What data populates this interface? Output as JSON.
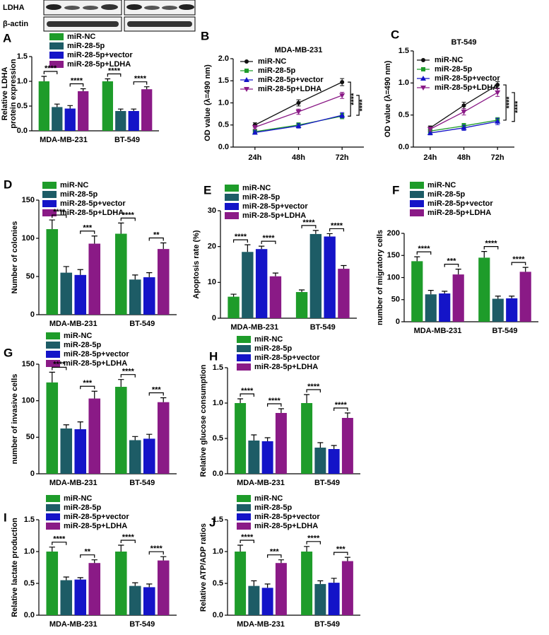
{
  "blot": {
    "labels": [
      "LDHA",
      "β-actin"
    ]
  },
  "chart_data": [
    {
      "panel": "A",
      "type": "bar",
      "y_label": [
        "Relative LDHA",
        "protein expression"
      ],
      "categories": [
        "MDA-MB-231",
        "BT-549"
      ],
      "ylim": [
        0,
        1.5
      ],
      "yticks": [
        {
          "value": 0,
          "label": "0.0"
        },
        0.5,
        {
          "value": 1,
          "label": "1.0"
        },
        1.5
      ],
      "series": [
        {
          "name": "miR-NC",
          "color": "#1e9c2a",
          "values": [
            1.0,
            1.0
          ],
          "errors": [
            0.1,
            0.05
          ]
        },
        {
          "name": "miR-28-5p",
          "color": "#1d5c66",
          "values": [
            0.48,
            0.4
          ],
          "errors": [
            0.06,
            0.04
          ]
        },
        {
          "name": "miR-28-5p+vector",
          "color": "#1414c8",
          "values": [
            0.45,
            0.4
          ],
          "errors": [
            0.06,
            0.04
          ]
        },
        {
          "name": "miR-28-5p+LDHA",
          "color": "#8a1a86",
          "values": [
            0.8,
            0.84
          ],
          "errors": [
            0.05,
            0.05
          ]
        }
      ],
      "annotations": [
        "****",
        "****",
        "****",
        "****"
      ]
    },
    {
      "panel": "B",
      "type": "line",
      "title": "MDA-MB-231",
      "y_label": "OD value (λ=490 nm)",
      "categories": [
        "24h",
        "48h",
        "72h"
      ],
      "ylim": [
        0,
        2
      ],
      "yticks": [
        {
          "value": 0,
          "label": "0.0"
        },
        0.5,
        {
          "value": 1,
          "label": "1.0"
        },
        1.5,
        {
          "value": 2,
          "label": "2.0"
        }
      ],
      "series": [
        {
          "name": "miR-NC",
          "color": "#111111",
          "marker": "circle",
          "values": [
            0.5,
            1.0,
            1.47
          ],
          "errors": [
            0.05,
            0.07,
            0.08
          ]
        },
        {
          "name": "miR-28-5p",
          "color": "#1e9c2a",
          "marker": "square",
          "values": [
            0.35,
            0.5,
            0.7
          ],
          "errors": [
            0.04,
            0.05,
            0.06
          ]
        },
        {
          "name": "miR-28-5p+vector",
          "color": "#1414c8",
          "marker": "triangle",
          "values": [
            0.33,
            0.48,
            0.72
          ],
          "errors": [
            0.04,
            0.05,
            0.06
          ]
        },
        {
          "name": "miR-28-5p+LDHA",
          "color": "#8a1a86",
          "marker": "triangle-down",
          "values": [
            0.45,
            0.8,
            1.17
          ],
          "errors": [
            0.04,
            0.06,
            0.07
          ]
        }
      ],
      "annotations": [
        "****",
        "****"
      ]
    },
    {
      "panel": "C",
      "type": "line",
      "title": "BT-549",
      "y_label": "OD value (λ=490 nm)",
      "categories": [
        "24h",
        "48h",
        "72h"
      ],
      "ylim": [
        0,
        1.5
      ],
      "yticks": [
        {
          "value": 0,
          "label": "0.0"
        },
        0.5,
        {
          "value": 1,
          "label": "1.0"
        },
        1.5
      ],
      "series": [
        {
          "name": "miR-NC",
          "color": "#111111",
          "marker": "circle",
          "values": [
            0.3,
            0.65,
            0.97
          ],
          "errors": [
            0.03,
            0.05,
            0.05
          ]
        },
        {
          "name": "miR-28-5p",
          "color": "#1e9c2a",
          "marker": "square",
          "values": [
            0.25,
            0.33,
            0.42
          ],
          "errors": [
            0.03,
            0.04,
            0.04
          ]
        },
        {
          "name": "miR-28-5p+vector",
          "color": "#1414c8",
          "marker": "triangle",
          "values": [
            0.22,
            0.3,
            0.4
          ],
          "errors": [
            0.03,
            0.04,
            0.05
          ]
        },
        {
          "name": "miR-28-5p+LDHA",
          "color": "#8a1a86",
          "marker": "triangle-down",
          "values": [
            0.28,
            0.55,
            0.85
          ],
          "errors": [
            0.03,
            0.05,
            0.06
          ]
        }
      ],
      "annotations": [
        "****",
        "****"
      ]
    },
    {
      "panel": "D",
      "type": "bar",
      "y_label": "Number of colonies",
      "categories": [
        "MDA-MB-231",
        "BT-549"
      ],
      "ylim": [
        0,
        150
      ],
      "yticks": [
        0,
        50,
        100,
        150
      ],
      "series": [
        {
          "name": "miR-NC",
          "color": "#1e9c2a",
          "values": [
            112,
            106
          ],
          "errors": [
            12,
            14
          ]
        },
        {
          "name": "miR-28-5p",
          "color": "#1d5c66",
          "values": [
            55,
            46
          ],
          "errors": [
            8,
            6
          ]
        },
        {
          "name": "miR-28-5p+vector",
          "color": "#1414c8",
          "values": [
            52,
            49
          ],
          "errors": [
            7,
            6
          ]
        },
        {
          "name": "miR-28-5p+LDHA",
          "color": "#8a1a86",
          "values": [
            93,
            86
          ],
          "errors": [
            10,
            8
          ]
        }
      ],
      "annotations": [
        "****",
        "***",
        "****",
        "**"
      ]
    },
    {
      "panel": "E",
      "type": "bar",
      "y_label": "Apoptosis rate (%)",
      "categories": [
        "MDA-MB-231",
        "BT-549"
      ],
      "ylim": [
        0,
        30
      ],
      "yticks": [
        0,
        10,
        20,
        30
      ],
      "series": [
        {
          "name": "miR-NC",
          "color": "#1e9c2a",
          "values": [
            6,
            7.3
          ],
          "errors": [
            0.7,
            0.6
          ]
        },
        {
          "name": "miR-28-5p",
          "color": "#1d5c66",
          "values": [
            18.5,
            23.5
          ],
          "errors": [
            2,
            1
          ]
        },
        {
          "name": "miR-28-5p+vector",
          "color": "#1414c8",
          "values": [
            19.3,
            22.8
          ],
          "errors": [
            0.8,
            0.8
          ]
        },
        {
          "name": "miR-28-5p+LDHA",
          "color": "#8a1a86",
          "values": [
            11.7,
            13.8
          ],
          "errors": [
            0.9,
            0.9
          ]
        }
      ],
      "annotations": [
        "****",
        "****",
        "****",
        "****"
      ]
    },
    {
      "panel": "F",
      "type": "bar",
      "y_label": "number of migratory cells",
      "categories": [
        "MDA-MB-231",
        "BT-549"
      ],
      "ylim": [
        0,
        200
      ],
      "yticks": [
        0,
        50,
        100,
        150,
        200
      ],
      "series": [
        {
          "name": "miR-NC",
          "color": "#1e9c2a",
          "values": [
            137,
            145
          ],
          "errors": [
            10,
            14
          ]
        },
        {
          "name": "miR-28-5p",
          "color": "#1d5c66",
          "values": [
            62,
            52
          ],
          "errors": [
            9,
            6
          ]
        },
        {
          "name": "miR-28-5p+vector",
          "color": "#1414c8",
          "values": [
            64,
            53
          ],
          "errors": [
            5,
            5
          ]
        },
        {
          "name": "miR-28-5p+LDHA",
          "color": "#8a1a86",
          "values": [
            107,
            113
          ],
          "errors": [
            12,
            10
          ]
        }
      ],
      "annotations": [
        "****",
        "***",
        "****",
        "****"
      ]
    },
    {
      "panel": "G",
      "type": "bar",
      "y_label": "number of invasive cells",
      "categories": [
        "MDA-MB-231",
        "BT-549"
      ],
      "ylim": [
        0,
        150
      ],
      "yticks": [
        0,
        50,
        100,
        150
      ],
      "series": [
        {
          "name": "miR-NC",
          "color": "#1e9c2a",
          "values": [
            125,
            119
          ],
          "errors": [
            14,
            10
          ]
        },
        {
          "name": "miR-28-5p",
          "color": "#1d5c66",
          "values": [
            62,
            46
          ],
          "errors": [
            5,
            5
          ]
        },
        {
          "name": "miR-28-5p+vector",
          "color": "#1414c8",
          "values": [
            61,
            48
          ],
          "errors": [
            10,
            6
          ]
        },
        {
          "name": "miR-28-5p+LDHA",
          "color": "#8a1a86",
          "values": [
            103,
            98
          ],
          "errors": [
            10,
            6
          ]
        }
      ],
      "annotations": [
        "****",
        "***",
        "****",
        "***"
      ]
    },
    {
      "panel": "H",
      "type": "bar",
      "y_label": "Relative glucose consumption",
      "categories": [
        "MDA-MB-231",
        "BT-549"
      ],
      "ylim": [
        0,
        1.5
      ],
      "yticks": [
        {
          "value": 0,
          "label": "0.0"
        },
        0.5,
        {
          "value": 1,
          "label": "1.0"
        },
        1.5
      ],
      "series": [
        {
          "name": "miR-NC",
          "color": "#1e9c2a",
          "values": [
            1.0,
            1.0
          ],
          "errors": [
            0.06,
            0.12
          ]
        },
        {
          "name": "miR-28-5p",
          "color": "#1d5c66",
          "values": [
            0.47,
            0.37
          ],
          "errors": [
            0.08,
            0.07
          ]
        },
        {
          "name": "miR-28-5p+vector",
          "color": "#1414c8",
          "values": [
            0.46,
            0.35
          ],
          "errors": [
            0.05,
            0.05
          ]
        },
        {
          "name": "miR-28-5p+LDHA",
          "color": "#8a1a86",
          "values": [
            0.86,
            0.79
          ],
          "errors": [
            0.06,
            0.07
          ]
        }
      ],
      "annotations": [
        "****",
        "****",
        "****",
        "****"
      ]
    },
    {
      "panel": "I",
      "type": "bar",
      "y_label": "Relative lactate production",
      "categories": [
        "MDA-MB-231",
        "BT-549"
      ],
      "ylim": [
        0,
        1.5
      ],
      "yticks": [
        {
          "value": 0,
          "label": "0.0"
        },
        0.5,
        {
          "value": 1,
          "label": "1.0"
        },
        1.5
      ],
      "series": [
        {
          "name": "miR-NC",
          "color": "#1e9c2a",
          "values": [
            1.0,
            1.0
          ],
          "errors": [
            0.07,
            0.1
          ]
        },
        {
          "name": "miR-28-5p",
          "color": "#1d5c66",
          "values": [
            0.55,
            0.46
          ],
          "errors": [
            0.05,
            0.05
          ]
        },
        {
          "name": "miR-28-5p+vector",
          "color": "#1414c8",
          "values": [
            0.56,
            0.44
          ],
          "errors": [
            0.03,
            0.05
          ]
        },
        {
          "name": "miR-28-5p+LDHA",
          "color": "#8a1a86",
          "values": [
            0.82,
            0.86
          ],
          "errors": [
            0.05,
            0.06
          ]
        }
      ],
      "annotations": [
        "****",
        "**",
        "****",
        "****"
      ]
    },
    {
      "panel": "J",
      "type": "bar",
      "y_label": "Relative ATP/ADP ratios",
      "categories": [
        "MDA-MB-231",
        "BT-549"
      ],
      "ylim": [
        0,
        1.5
      ],
      "yticks": [
        {
          "value": 0,
          "label": "0.0"
        },
        0.5,
        {
          "value": 1,
          "label": "1.0"
        },
        1.5
      ],
      "series": [
        {
          "name": "miR-NC",
          "color": "#1e9c2a",
          "values": [
            1.0,
            1.0
          ],
          "errors": [
            0.1,
            0.08
          ]
        },
        {
          "name": "miR-28-5p",
          "color": "#1d5c66",
          "values": [
            0.46,
            0.49
          ],
          "errors": [
            0.08,
            0.05
          ]
        },
        {
          "name": "miR-28-5p+vector",
          "color": "#1414c8",
          "values": [
            0.43,
            0.51
          ],
          "errors": [
            0.06,
            0.07
          ]
        },
        {
          "name": "miR-28-5p+LDHA",
          "color": "#8a1a86",
          "values": [
            0.82,
            0.85
          ],
          "errors": [
            0.05,
            0.06
          ]
        }
      ],
      "annotations": [
        "****",
        "***",
        "****",
        "***"
      ]
    }
  ]
}
